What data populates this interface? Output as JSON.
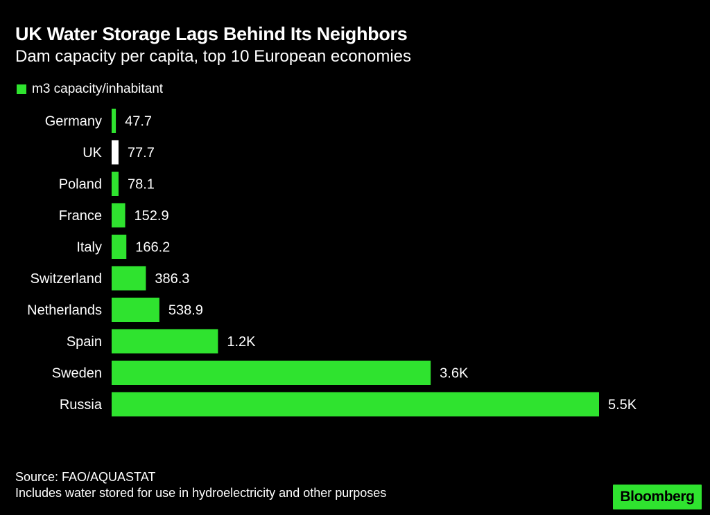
{
  "header": {
    "title": "UK Water Storage Lags Behind Its Neighbors",
    "subtitle": "Dam capacity per capita, top 10 European economies"
  },
  "legend": {
    "label": "m3 capacity/inhabitant",
    "color": "#2fe32f"
  },
  "colors": {
    "bar": "#2fe32f",
    "highlight": "#ffffff",
    "background": "#000000",
    "text": "#ffffff"
  },
  "chart_data": {
    "type": "bar",
    "orientation": "horizontal",
    "title": "UK Water Storage Lags Behind Its Neighbors",
    "subtitle": "Dam capacity per capita, top 10 European economies",
    "xlabel": "",
    "ylabel": "",
    "grid": false,
    "legend_position": "top-left",
    "series": [
      {
        "name": "m3 capacity/inhabitant",
        "values": [
          47.7,
          77.7,
          78.1,
          152.9,
          166.2,
          386.3,
          538.9,
          1200,
          3600,
          5500
        ],
        "labels": [
          "47.7",
          "77.7",
          "78.1",
          "152.9",
          "166.2",
          "386.3",
          "538.9",
          "1.2K",
          "3.6K",
          "5.5K"
        ]
      }
    ],
    "categories": [
      "Germany",
      "UK",
      "Poland",
      "France",
      "Italy",
      "Switzerland",
      "Netherlands",
      "Spain",
      "Sweden",
      "Russia"
    ],
    "highlighted": [
      "UK"
    ],
    "xlim": [
      0,
      5500
    ]
  },
  "footer": {
    "source": "Source: FAO/AQUASTAT",
    "note": "Includes water stored for use in hydroelectricity and other purposes"
  },
  "brand": {
    "name": "Bloomberg",
    "color": "#2fe32f"
  }
}
